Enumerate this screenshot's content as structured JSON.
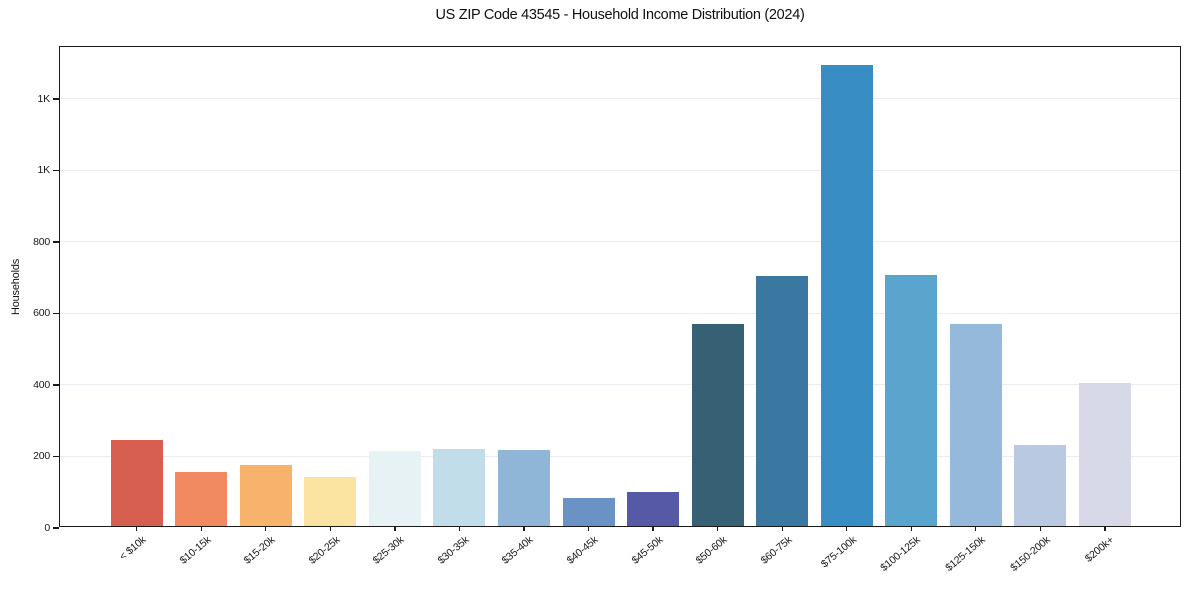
{
  "chart_data": {
    "type": "bar",
    "title": "US ZIP Code 43545 - Household Income Distribution (2024)",
    "xlabel": "",
    "ylabel": "Households",
    "categories": [
      "< $10k",
      "$10-15k",
      "$15-20k",
      "$20-25k",
      "$25-30k",
      "$30-35k",
      "$35-40k",
      "$40-45k",
      "$45-50k",
      "$50-60k",
      "$60-75k",
      "$75-100k",
      "$100-125k",
      "$125-150k",
      "$150-200k",
      "$200k+"
    ],
    "values": [
      240,
      152,
      172,
      136,
      210,
      214,
      212,
      77,
      95,
      565,
      698,
      1290,
      701,
      564,
      227,
      400
    ],
    "bar_colors": [
      "#d65f51",
      "#f18a61",
      "#f7b36c",
      "#fbe3a2",
      "#e7f2f4",
      "#c0dde9",
      "#8fb6d7",
      "#6a92c4",
      "#5659a6",
      "#366073",
      "#3a78a2",
      "#388dc5",
      "#5aa5ce",
      "#95b9da",
      "#b9c9e1",
      "#d7d9e8"
    ],
    "ylim": [
      0,
      1345
    ],
    "yticks": [
      {
        "value": 0,
        "label": "0"
      },
      {
        "value": 200,
        "label": "200"
      },
      {
        "value": 400,
        "label": "400"
      },
      {
        "value": 600,
        "label": "600"
      },
      {
        "value": 800,
        "label": "800"
      },
      {
        "value": 1000,
        "label": "1K"
      },
      {
        "value": 1200,
        "label": "1K"
      }
    ],
    "grid": "horizontal",
    "legend_position": "none"
  },
  "style": {
    "background": "#ffffff",
    "grid_color": "#ebebf1",
    "spine_color": "#1a1a1a",
    "text_color": "#1a1a1a"
  }
}
